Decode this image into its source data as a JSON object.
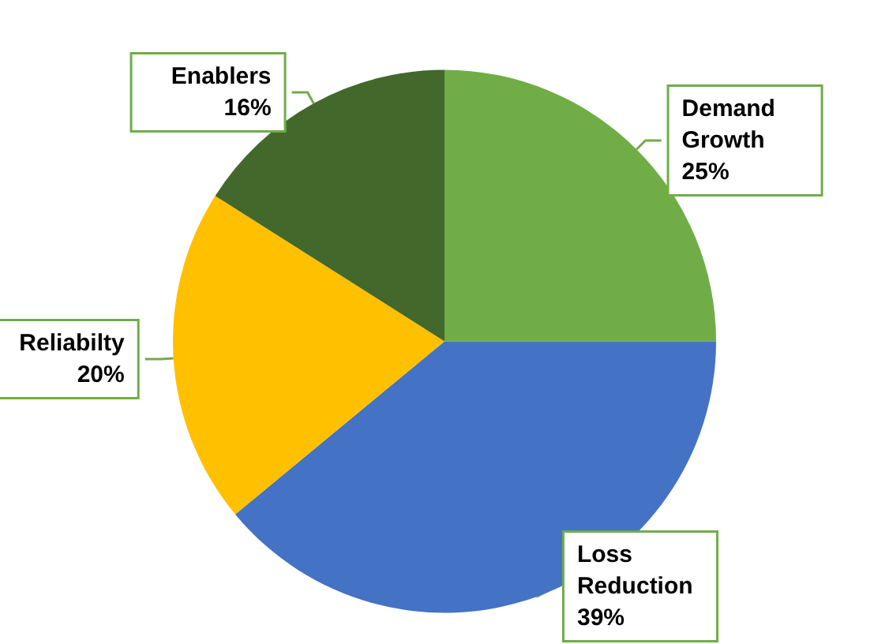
{
  "chart_data": {
    "type": "pie",
    "categories": [
      "Demand Growth",
      "Loss Reduction",
      "Reliabilty",
      "Enablers"
    ],
    "values": [
      25,
      39,
      20,
      16
    ],
    "value_labels": [
      "25%",
      "39%",
      "20%",
      "16%"
    ],
    "colors": [
      "#70ad47",
      "#4472c4",
      "#ffc000",
      "#43682b"
    ],
    "legend": false
  }
}
